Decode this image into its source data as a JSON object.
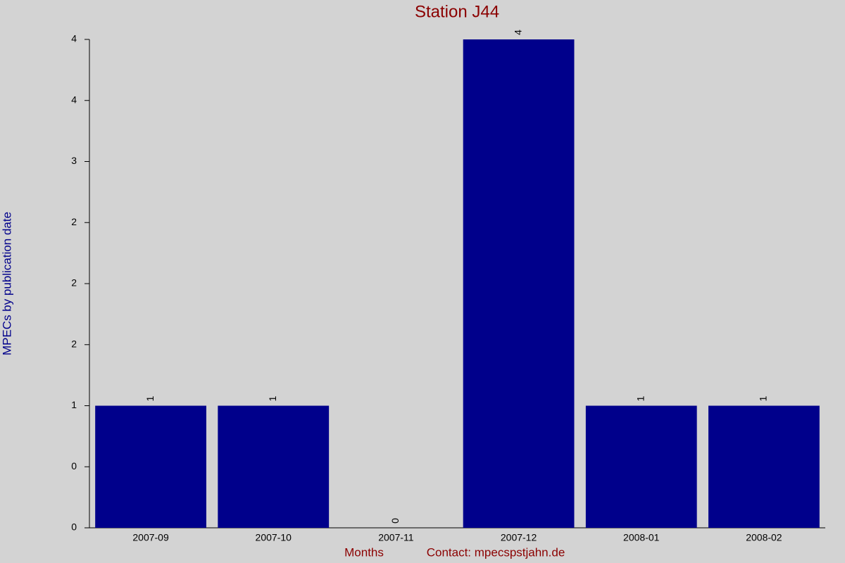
{
  "chart_data": {
    "type": "bar",
    "title": "Station J44",
    "x_label": "Months",
    "y_label": "MPECs by publication date",
    "note": "Contact: mpecspstjahn.de",
    "categories": [
      "2007-09",
      "2007-10",
      "2007-11",
      "2007-12",
      "2008-01",
      "2008-02"
    ],
    "values": [
      1,
      1,
      0,
      4,
      1,
      1
    ],
    "color": "#00008b",
    "ylim": [
      0,
      4
    ],
    "yticks": [
      0,
      {
        "value": 0.5,
        "label": "0"
      },
      1,
      {
        "value": 1.5,
        "label": "2"
      },
      2,
      {
        "value": 2.5,
        "label": "2"
      },
      3,
      {
        "value": 3.5,
        "label": "4"
      },
      4
    ],
    "grid": false
  }
}
